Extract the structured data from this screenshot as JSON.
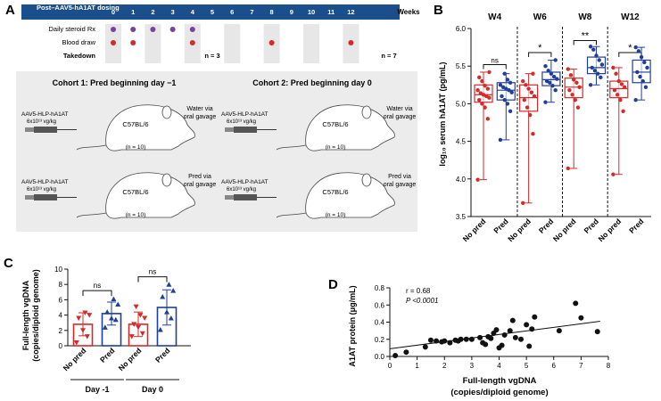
{
  "panel_labels": {
    "A": "A",
    "B": "B",
    "C": "C",
    "D": "D"
  },
  "panel_a": {
    "header_label": "Post–AAV5-hA1AT dosing",
    "weeks_label": "Weeks",
    "weeks": [
      "0",
      "1",
      "2",
      "3",
      "4",
      "5",
      "6",
      "7",
      "8",
      "9",
      "10",
      "11",
      "12"
    ],
    "rows": [
      {
        "label": "Daily steroid Rx",
        "color": "#7b3fa0",
        "marks": [
          0,
          1,
          2,
          3,
          4
        ]
      },
      {
        "label": "Blood draw",
        "color": "#d42a2a",
        "marks": [
          0,
          1,
          4,
          8,
          12
        ]
      },
      {
        "label": "Takedown",
        "color": "#111111",
        "marks": []
      }
    ],
    "takedown": [
      {
        "week": 4,
        "text": "n = 3"
      },
      {
        "week": 12,
        "text": "n = 7"
      }
    ],
    "cohorts": [
      {
        "title": "Cohort 1: Pred beginning day −1",
        "arms": [
          {
            "vector": "AAV5-HLP-hA1AT",
            "dose": "6x10¹³ vg/kg",
            "strain": "C57BL/6",
            "n": "(n = 10)",
            "treatment": "Water via oral gavage"
          },
          {
            "vector": "AAV5-HLP-hA1AT",
            "dose": "6x10¹³ vg/kg",
            "strain": "C57BL/6",
            "n": "(n = 10)",
            "treatment": "Pred via oral gavage"
          }
        ]
      },
      {
        "title": "Cohort 2: Pred beginning day 0",
        "arms": [
          {
            "vector": "AAV5-HLP-hA1AT",
            "dose": "6x10¹³ vg/kg",
            "strain": "C57BL/6",
            "n": "(n = 10)",
            "treatment": "Water via oral gavage"
          },
          {
            "vector": "AAV5-HLP-hA1AT",
            "dose": "6x10¹³ vg/kg",
            "strain": "C57BL/6",
            "n": "(n = 10)",
            "treatment": "Pred via oral gavage"
          }
        ]
      }
    ]
  },
  "chart_data": [
    {
      "id": "B",
      "type": "box",
      "ylabel": "log₁₀ serum hA1AT (pg/mL)",
      "ylim": [
        3.5,
        6.0
      ],
      "yticks": [
        "3.5",
        "4.0",
        "4.5",
        "5.0",
        "5.5",
        "6.0"
      ],
      "groups": [
        {
          "title": "W4",
          "sig": "ns"
        },
        {
          "title": "W6",
          "sig": "*"
        },
        {
          "title": "W8",
          "sig": "**"
        },
        {
          "title": "W12",
          "sig": "*"
        }
      ],
      "categories": [
        "No pred",
        "Pred",
        "No pred",
        "Pred",
        "No pred",
        "Pred",
        "No pred",
        "Pred"
      ],
      "colors": [
        "#d42a2a",
        "#1f3f9a"
      ],
      "boxes": [
        {
          "min": 3.99,
          "q1": 5.02,
          "median": 5.12,
          "q3": 5.25,
          "max": 5.42
        },
        {
          "min": 4.52,
          "q1": 5.05,
          "median": 5.18,
          "q3": 5.28,
          "max": 5.4
        },
        {
          "min": 3.68,
          "q1": 4.9,
          "median": 5.08,
          "q3": 5.25,
          "max": 5.4
        },
        {
          "min": 5.02,
          "q1": 5.24,
          "median": 5.32,
          "q3": 5.42,
          "max": 5.58
        },
        {
          "min": 4.14,
          "q1": 5.08,
          "median": 5.22,
          "q3": 5.34,
          "max": 5.46
        },
        {
          "min": 5.25,
          "q1": 5.4,
          "median": 5.48,
          "q3": 5.62,
          "max": 5.76
        },
        {
          "min": 4.06,
          "q1": 5.08,
          "median": 5.2,
          "q3": 5.3,
          "max": 5.48
        },
        {
          "min": 5.05,
          "q1": 5.28,
          "median": 5.42,
          "q3": 5.58,
          "max": 5.75
        }
      ],
      "points": [
        [
          3.99,
          4.8,
          4.95,
          5.0,
          5.05,
          5.08,
          5.1,
          5.12,
          5.14,
          5.18,
          5.2,
          5.24,
          5.3,
          5.35,
          5.42
        ],
        [
          4.52,
          4.9,
          5.0,
          5.05,
          5.1,
          5.15,
          5.18,
          5.2,
          5.22,
          5.25,
          5.28,
          5.32,
          5.4
        ],
        [
          3.68,
          4.6,
          4.85,
          4.95,
          5.05,
          5.1,
          5.15,
          5.2,
          5.25,
          5.3,
          5.4
        ],
        [
          5.02,
          5.18,
          5.24,
          5.28,
          5.3,
          5.33,
          5.36,
          5.4,
          5.44,
          5.5,
          5.58
        ],
        [
          4.14,
          4.95,
          5.05,
          5.12,
          5.18,
          5.22,
          5.28,
          5.32,
          5.38,
          5.46
        ],
        [
          5.25,
          5.35,
          5.4,
          5.44,
          5.48,
          5.52,
          5.58,
          5.64,
          5.72,
          5.76
        ],
        [
          4.06,
          4.9,
          5.05,
          5.12,
          5.18,
          5.22,
          5.26,
          5.3,
          5.4,
          5.48
        ],
        [
          5.05,
          5.22,
          5.3,
          5.36,
          5.42,
          5.48,
          5.55,
          5.62,
          5.7,
          5.75
        ]
      ]
    },
    {
      "id": "C",
      "type": "bar",
      "ylabel": "Full-length vgDNA (copies/diploid genome)",
      "ylim": [
        0,
        10
      ],
      "yticks": [
        "0",
        "2",
        "4",
        "6",
        "8",
        "10"
      ],
      "categories": [
        "No pred",
        "Pred",
        "No pred",
        "Pred"
      ],
      "group_labels": [
        "Day -1",
        "Day 0"
      ],
      "colors": [
        "#d42a2a",
        "#1f3f9a"
      ],
      "values": [
        2.8,
        4.2,
        2.8,
        5.0
      ],
      "sd": [
        1.5,
        1.5,
        1.6,
        2.3
      ],
      "points": [
        [
          0.4,
          1.2,
          2.0,
          3.6,
          4.0,
          4.3
        ],
        [
          2.4,
          3.4,
          3.6,
          4.4,
          5.4,
          6.1
        ],
        [
          1.2,
          1.6,
          2.4,
          2.8,
          3.6,
          4.0,
          5.1
        ],
        [
          2.1,
          3.6,
          4.4,
          6.4,
          7.2,
          8.0
        ]
      ],
      "sig": [
        "ns",
        "ns"
      ]
    },
    {
      "id": "D",
      "type": "scatter",
      "xlabel": "Full-length vgDNA (copies/diploid genome)",
      "ylabel": "A1AT protein (μg/mL)",
      "xlim": [
        0,
        8
      ],
      "ylim": [
        0,
        0.8
      ],
      "xticks": [
        "0",
        "1",
        "2",
        "3",
        "4",
        "5",
        "6",
        "7",
        "8"
      ],
      "yticks": [
        "0.0",
        "0.2",
        "0.4",
        "0.6",
        "0.8"
      ],
      "annotation_r": "r = 0.68",
      "annotation_p": "P <0.0001",
      "regression": {
        "x0": 0,
        "y0": 0.09,
        "x1": 7.7,
        "y1": 0.41
      },
      "x": [
        0.2,
        0.6,
        1.3,
        1.5,
        1.7,
        1.9,
        2.0,
        2.2,
        2.4,
        2.5,
        2.6,
        2.8,
        3.0,
        3.3,
        3.4,
        3.5,
        3.6,
        3.7,
        3.8,
        3.9,
        4.0,
        4.1,
        4.2,
        4.4,
        4.5,
        4.6,
        4.8,
        5.0,
        5.1,
        5.2,
        5.3,
        6.2,
        6.8,
        7.0,
        7.6
      ],
      "y": [
        0.01,
        0.05,
        0.11,
        0.19,
        0.18,
        0.17,
        0.18,
        0.16,
        0.19,
        0.18,
        0.2,
        0.2,
        0.2,
        0.22,
        0.16,
        0.14,
        0.23,
        0.21,
        0.27,
        0.31,
        0.1,
        0.13,
        0.25,
        0.3,
        0.42,
        0.22,
        0.2,
        0.37,
        0.12,
        0.32,
        0.46,
        0.3,
        0.62,
        0.45,
        0.29
      ]
    }
  ]
}
